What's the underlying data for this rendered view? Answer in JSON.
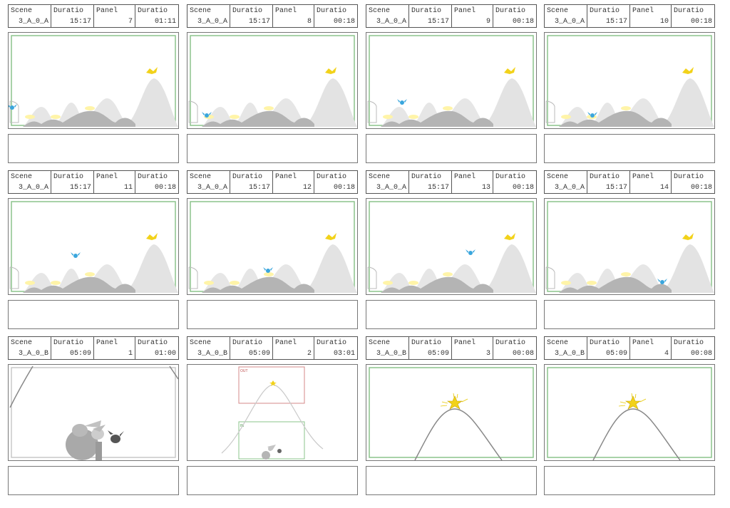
{
  "labels": {
    "scene": "Scene",
    "duration": "Duratio",
    "panel": "Panel",
    "panel_duration": "Duratio"
  },
  "panels": [
    {
      "scene": "3_A_0_A",
      "duration": "15:17",
      "panel": "7",
      "panel_duration": "01:11"
    },
    {
      "scene": "3_A_0_A",
      "duration": "15:17",
      "panel": "8",
      "panel_duration": "00:18"
    },
    {
      "scene": "3_A_0_A",
      "duration": "15:17",
      "panel": "9",
      "panel_duration": "00:18"
    },
    {
      "scene": "3_A_0_A",
      "duration": "15:17",
      "panel": "10",
      "panel_duration": "00:18"
    },
    {
      "scene": "3_A_0_A",
      "duration": "15:17",
      "panel": "11",
      "panel_duration": "00:18"
    },
    {
      "scene": "3_A_0_A",
      "duration": "15:17",
      "panel": "12",
      "panel_duration": "00:18"
    },
    {
      "scene": "3_A_0_A",
      "duration": "15:17",
      "panel": "13",
      "panel_duration": "00:18"
    },
    {
      "scene": "3_A_0_A",
      "duration": "15:17",
      "panel": "14",
      "panel_duration": "00:18"
    },
    {
      "scene": "3_A_0_B",
      "duration": "05:09",
      "panel": "1",
      "panel_duration": "01:00"
    },
    {
      "scene": "3_A_0_B",
      "duration": "05:09",
      "panel": "2",
      "panel_duration": "03:01"
    },
    {
      "scene": "3_A_0_B",
      "duration": "05:09",
      "panel": "3",
      "panel_duration": "00:08"
    },
    {
      "scene": "3_A_0_B",
      "duration": "05:09",
      "panel": "4",
      "panel_duration": "00:08"
    }
  ],
  "frame_labels": {
    "out": "OUT",
    "in": "IN"
  },
  "colors": {
    "safe_frame": "#8bc48b",
    "bird": "#3aa6dd",
    "star": "#f2d21a",
    "glow": "#fff4a8",
    "hill": "#e3e3e3",
    "out_frame": "#d48a8a"
  }
}
